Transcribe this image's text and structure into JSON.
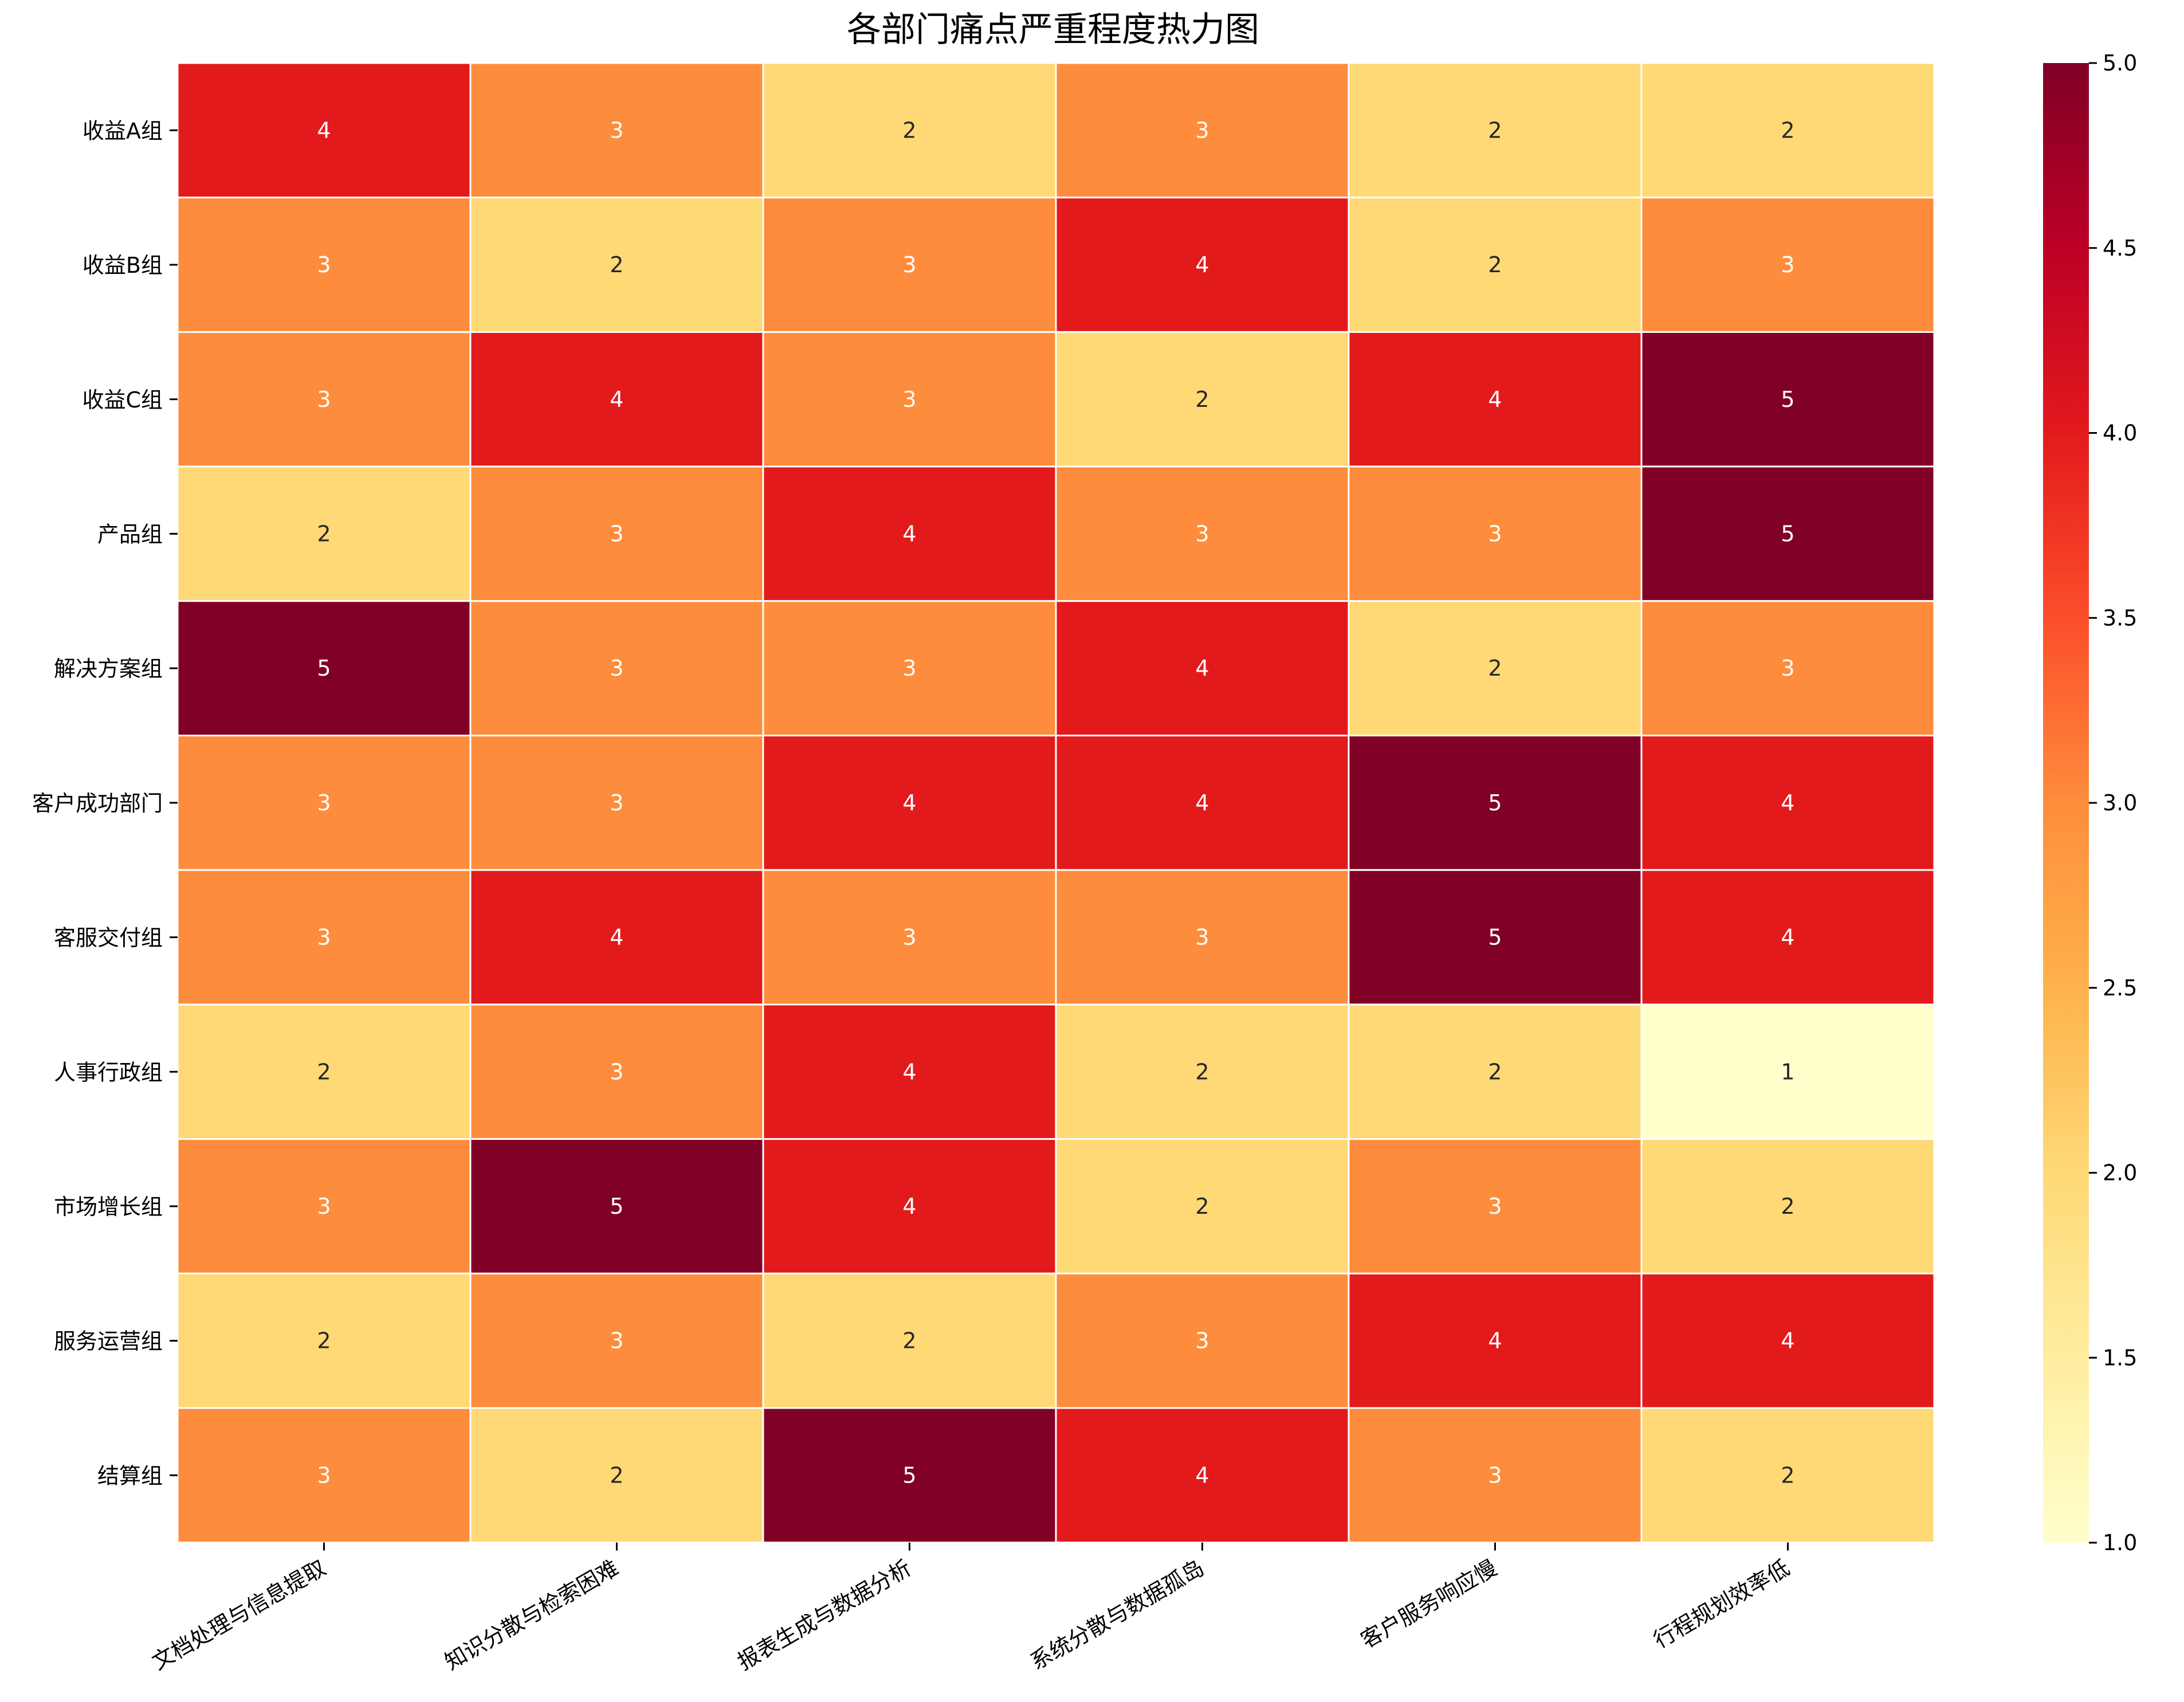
{
  "chart_data": {
    "type": "heatmap",
    "title": "各部门痛点严重程度热力图",
    "rows": [
      "收益A组",
      "收益B组",
      "收益C组",
      "产品组",
      "解决方案组",
      "客户成功部门",
      "客服交付组",
      "人事行政组",
      "市场增长组",
      "服务运营组",
      "结算组"
    ],
    "columns": [
      "文档处理与信息提取",
      "知识分散与检索困难",
      "报表生成与数据分析",
      "系统分散与数据孤岛",
      "客户服务响应慢",
      "行程规划效率低"
    ],
    "values": [
      [
        4,
        3,
        2,
        3,
        2,
        2
      ],
      [
        3,
        2,
        3,
        4,
        2,
        3
      ],
      [
        3,
        4,
        3,
        2,
        4,
        5
      ],
      [
        2,
        3,
        4,
        3,
        3,
        5
      ],
      [
        5,
        3,
        3,
        4,
        2,
        3
      ],
      [
        3,
        3,
        4,
        4,
        5,
        4
      ],
      [
        3,
        4,
        3,
        3,
        5,
        4
      ],
      [
        2,
        3,
        4,
        2,
        2,
        1
      ],
      [
        3,
        5,
        4,
        2,
        3,
        2
      ],
      [
        2,
        3,
        2,
        3,
        4,
        4
      ],
      [
        3,
        2,
        5,
        4,
        3,
        2
      ]
    ],
    "color_range": [
      1.0,
      5.0
    ],
    "colorbar_ticks": [
      "1.0",
      "1.5",
      "2.0",
      "2.5",
      "3.0",
      "3.5",
      "4.0",
      "4.5",
      "5.0"
    ],
    "value_colors": {
      "1": "#ffffcc",
      "2": "#fed976",
      "3": "#fd8d3c",
      "4": "#e31a1c",
      "5": "#800026"
    },
    "colormap": "YlOrRd"
  }
}
